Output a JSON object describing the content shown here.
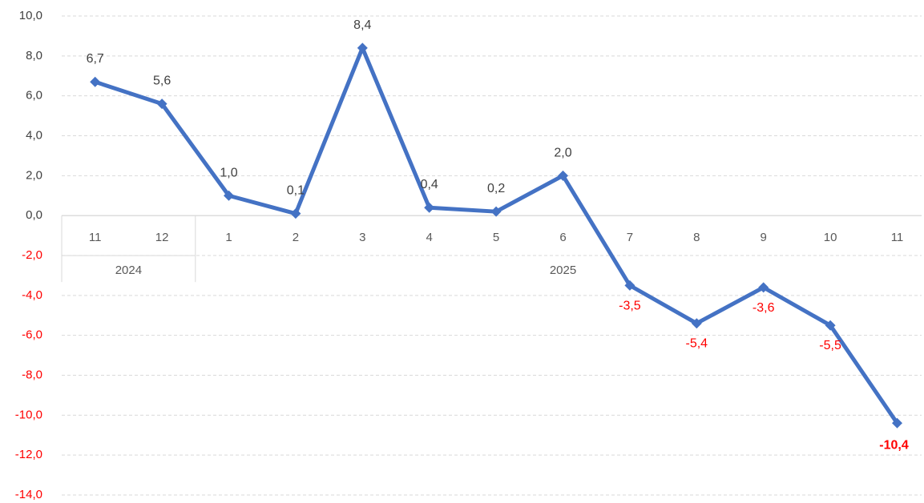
{
  "chart_data": {
    "type": "line",
    "title": "",
    "xlabel": "",
    "ylabel": "",
    "ylim": [
      -14,
      10
    ],
    "yticks": [
      10,
      8,
      6,
      4,
      2,
      0,
      -2,
      -4,
      -6,
      -8,
      -10,
      -12,
      -14
    ],
    "ytick_labels": [
      "10,0",
      "8,0",
      "6,0",
      "4,0",
      "2,0",
      "0,0",
      "-2,0",
      "-4,0",
      "-6,0",
      "-8,0",
      "-10,0",
      "-12,0",
      "-14,0"
    ],
    "categories": [
      "11",
      "12",
      "1",
      "2",
      "3",
      "4",
      "5",
      "6",
      "7",
      "8",
      "9",
      "10",
      "11"
    ],
    "groups": [
      {
        "label": "2024",
        "start": 0,
        "end": 1
      },
      {
        "label": "2025",
        "start": 2,
        "end": 12
      }
    ],
    "series": [
      {
        "values": [
          6.7,
          5.6,
          1.0,
          0.1,
          8.4,
          0.4,
          0.2,
          2.0,
          -3.5,
          -5.4,
          -3.6,
          -5.5,
          -10.4
        ],
        "data_labels": [
          "6,7",
          "5,6",
          "1,0",
          "0,1",
          "8,4",
          "0,4",
          "0,2",
          "2,0",
          "-3,5",
          "-5,4",
          "-3,6",
          "-5,5",
          "-10,4"
        ],
        "color": "#4472C4"
      }
    ],
    "grid": true,
    "colors": {
      "line": "#4472C4",
      "positive_label": "#404040",
      "negative_label": "#FF0000",
      "grid": "#D9D9D9",
      "axis": "#D9D9D9"
    }
  }
}
